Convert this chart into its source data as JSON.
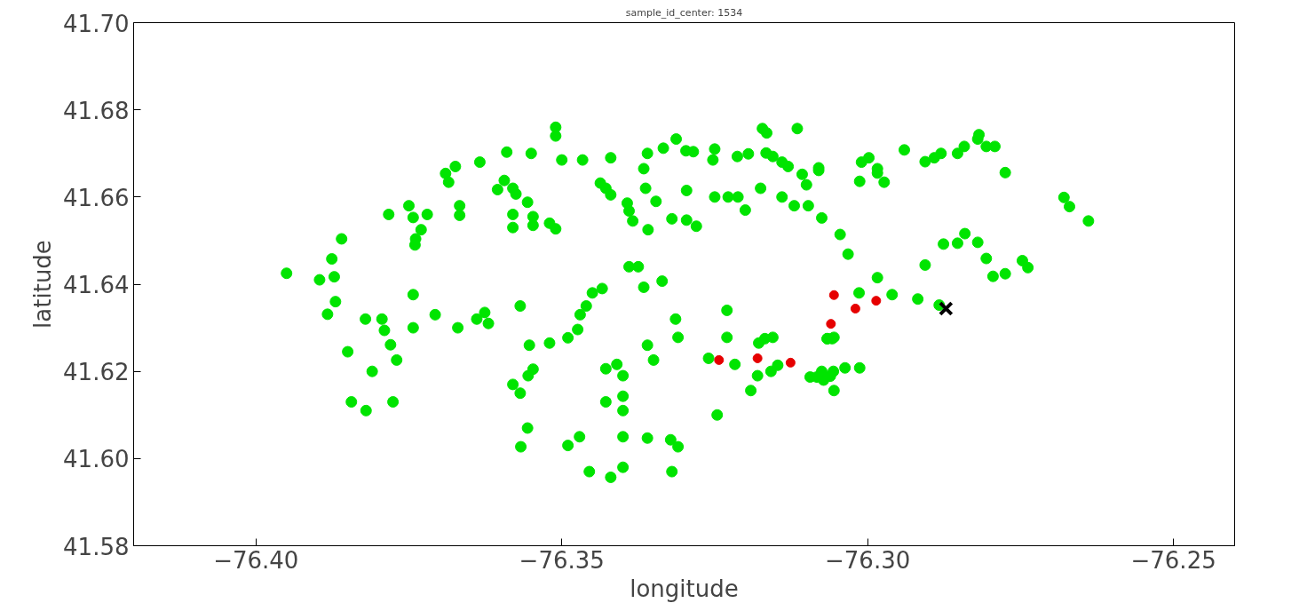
{
  "chart_data": {
    "type": "scatter",
    "title": "sample_id_center: 1534",
    "xlabel": "longitude",
    "ylabel": "latitude",
    "xlim": [
      -76.42,
      -76.24
    ],
    "ylim": [
      41.58,
      41.7
    ],
    "xticks": [
      {
        "value": -76.4,
        "label": "−76.40"
      },
      {
        "value": -76.35,
        "label": "−76.35"
      },
      {
        "value": -76.3,
        "label": "−76.30"
      },
      {
        "value": -76.25,
        "label": "−76.25"
      }
    ],
    "yticks": [
      {
        "value": 41.58,
        "label": "41.58"
      },
      {
        "value": 41.6,
        "label": "41.60"
      },
      {
        "value": 41.62,
        "label": "41.62"
      },
      {
        "value": 41.64,
        "label": "41.64"
      },
      {
        "value": 41.66,
        "label": "41.66"
      },
      {
        "value": 41.68,
        "label": "41.68"
      },
      {
        "value": 41.7,
        "label": "41.70"
      }
    ],
    "grid": false,
    "series": [
      {
        "color": "#00e400",
        "marker": "circle",
        "x": [
          -76.395,
          -76.3896,
          -76.3876,
          -76.3872,
          -76.386,
          -76.3883,
          -76.387,
          -76.385,
          -76.3844,
          -76.382,
          -76.3821,
          -76.3794,
          -76.379,
          -76.378,
          -76.377,
          -76.381,
          -76.3776,
          -76.3783,
          -76.375,
          -76.3743,
          -76.373,
          -76.3739,
          -76.374,
          -76.3743,
          -76.3743,
          -76.3707,
          -76.372,
          -76.369,
          -76.3685,
          -76.3674,
          -76.3667,
          -76.3667,
          -76.3634,
          -76.367,
          -76.3639,
          -76.3626,
          -76.362,
          -76.3605,
          -76.3594,
          -76.358,
          -76.3575,
          -76.3556,
          -76.359,
          -76.355,
          -76.358,
          -76.358,
          -76.3547,
          -76.3547,
          -76.352,
          -76.351,
          -76.3568,
          -76.358,
          -76.3568,
          -76.3555,
          -76.3553,
          -76.3547,
          -76.352,
          -76.3567,
          -76.3556,
          -76.351,
          -76.351,
          -76.35,
          -76.349,
          -76.3474,
          -76.347,
          -76.346,
          -76.345,
          -76.3434,
          -76.349,
          -76.3471,
          -76.3455,
          -76.342,
          -76.34,
          -76.3428,
          -76.341,
          -76.34,
          -76.34,
          -76.34,
          -76.34,
          -76.3428,
          -76.3466,
          -76.3437,
          -76.3428,
          -76.342,
          -76.342,
          -76.3393,
          -76.339,
          -76.3384,
          -76.339,
          -76.3375,
          -76.3366,
          -76.336,
          -76.3334,
          -76.3363,
          -76.3346,
          -76.3359,
          -76.3366,
          -76.3336,
          -76.336,
          -76.335,
          -76.336,
          -76.3322,
          -76.331,
          -76.332,
          -76.3313,
          -76.3314,
          -76.331,
          -76.332,
          -76.3296,
          -76.328,
          -76.3297,
          -76.3285,
          -76.3296,
          -76.3253,
          -76.325,
          -76.3246,
          -76.325,
          -76.326,
          -76.323,
          -76.323,
          -76.3217,
          -76.3228,
          -76.3212,
          -76.32,
          -76.3213,
          -76.3195,
          -76.3191,
          -76.318,
          -76.3178,
          -76.3168,
          -76.3155,
          -76.3172,
          -76.3165,
          -76.3175,
          -76.3166,
          -76.3155,
          -76.314,
          -76.313,
          -76.314,
          -76.3158,
          -76.3147,
          -76.3115,
          -76.312,
          -76.3107,
          -76.31,
          -76.3094,
          -76.3083,
          -76.3072,
          -76.3061,
          -76.3055,
          -76.3075,
          -76.3097,
          -76.308,
          -76.3075,
          -76.308,
          -76.3066,
          -76.3055,
          -76.3056,
          -76.3037,
          -76.3013,
          -76.3066,
          -76.3058,
          -76.3045,
          -76.3032,
          -76.3014,
          -76.301,
          -76.2998,
          -76.2984,
          -76.3013,
          -76.2984,
          -76.2973,
          -76.2984,
          -76.296,
          -76.294,
          -76.2918,
          -76.2906,
          -76.2906,
          -76.2891,
          -76.288,
          -76.2883,
          -76.2876,
          -76.2853,
          -76.2841,
          -76.2853,
          -76.2842,
          -76.282,
          -76.2818,
          -76.2806,
          -76.2792,
          -76.2775,
          -76.282,
          -76.2806,
          -76.2795,
          -76.2775,
          -76.2747,
          -76.2738,
          -76.2679,
          -76.267,
          -76.2639
        ],
        "values": [
          41.6425,
          41.641,
          41.6458,
          41.6417,
          41.6504,
          41.6331,
          41.636,
          41.6245,
          41.613,
          41.611,
          41.632,
          41.632,
          41.6294,
          41.6261,
          41.6226,
          41.62,
          41.613,
          41.656,
          41.658,
          41.6553,
          41.6525,
          41.6504,
          41.649,
          41.6376,
          41.63,
          41.633,
          41.656,
          41.6654,
          41.6634,
          41.667,
          41.658,
          41.6558,
          41.668,
          41.63,
          41.632,
          41.6335,
          41.631,
          41.6617,
          41.6638,
          41.662,
          41.6607,
          41.6588,
          41.6703,
          41.67,
          41.656,
          41.653,
          41.6555,
          41.6535,
          41.654,
          41.6527,
          41.635,
          41.617,
          41.615,
          41.619,
          41.626,
          41.6205,
          41.6265,
          41.6027,
          41.607,
          41.676,
          41.674,
          41.6685,
          41.6277,
          41.6296,
          41.633,
          41.635,
          41.638,
          41.639,
          41.603,
          41.605,
          41.597,
          41.5957,
          41.598,
          41.6206,
          41.6216,
          41.619,
          41.6143,
          41.611,
          41.605,
          41.613,
          41.6685,
          41.6632,
          41.662,
          41.669,
          41.6605,
          41.6586,
          41.6568,
          41.6545,
          41.644,
          41.644,
          41.6665,
          41.67,
          41.6712,
          41.662,
          41.659,
          41.6525,
          41.6393,
          41.6407,
          41.626,
          41.6226,
          41.6047,
          41.6043,
          41.6027,
          41.597,
          41.6733,
          41.632,
          41.6278,
          41.655,
          41.6547,
          41.6533,
          41.6706,
          41.6704,
          41.6615,
          41.6685,
          41.671,
          41.61,
          41.66,
          41.623,
          41.634,
          41.6278,
          41.6216,
          41.66,
          41.66,
          41.657,
          41.6693,
          41.6699,
          41.6156,
          41.619,
          41.6265,
          41.6275,
          41.6278,
          41.6757,
          41.6747,
          41.662,
          41.6701,
          41.6693,
          41.668,
          41.667,
          41.66,
          41.62,
          41.6214,
          41.6757,
          41.658,
          41.6652,
          41.6628,
          41.6187,
          41.6187,
          41.618,
          41.6189,
          41.6156,
          41.62,
          41.658,
          41.6661,
          41.6552,
          41.6667,
          41.6275,
          41.6278,
          41.62,
          41.6208,
          41.6208,
          41.6275,
          41.6275,
          41.6514,
          41.6469,
          41.638,
          41.668,
          41.669,
          41.6665,
          41.6636,
          41.6655,
          41.6634,
          41.6415,
          41.6376,
          41.6708,
          41.6366,
          41.6444,
          41.6681,
          41.669,
          41.67,
          41.6352,
          41.6492,
          41.67,
          41.6516,
          41.6494,
          41.6716,
          41.6733,
          41.6743,
          41.6716,
          41.6716,
          41.6656,
          41.6496,
          41.6459,
          41.6418,
          41.6424,
          41.6454,
          41.6438,
          41.6599,
          41.6578,
          41.6545
        ]
      },
      {
        "color": "#e60000",
        "marker": "circle",
        "x": [
          -76.3243,
          -76.318,
          -76.3126,
          -76.306,
          -76.3055,
          -76.302,
          -76.2986
        ],
        "values": [
          41.6226,
          41.623,
          41.622,
          41.6309,
          41.6375,
          41.6344,
          41.6362
        ]
      },
      {
        "color": "#000000",
        "marker": "cross",
        "x": [
          -76.2872
        ],
        "values": [
          41.6344
        ]
      }
    ]
  }
}
